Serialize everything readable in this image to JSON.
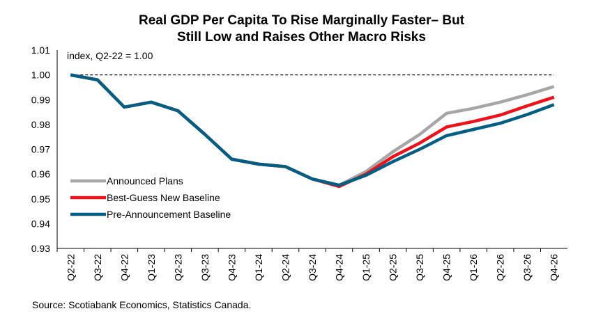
{
  "chart_data": {
    "type": "line",
    "title_lines": [
      "Real GDP Per Capita To Rise Marginally Faster– But",
      "Still Low and Raises Other Macro Risks"
    ],
    "annotation": "index, Q2-22 = 1.00",
    "source": "Source: Scotiabank Economics, Statistics Canada.",
    "categories": [
      "Q2-22",
      "Q3-22",
      "Q4-22",
      "Q1-23",
      "Q2-23",
      "Q3-23",
      "Q4-23",
      "Q1-24",
      "Q2-24",
      "Q3-24",
      "Q4-24",
      "Q1-25",
      "Q2-25",
      "Q3-25",
      "Q4-25",
      "Q1-26",
      "Q2-26",
      "Q3-26",
      "Q4-26"
    ],
    "ylim": [
      0.93,
      1.01
    ],
    "yticks": [
      "0.93",
      "0.94",
      "0.95",
      "0.96",
      "0.97",
      "0.98",
      "0.99",
      "1.00",
      "1.01"
    ],
    "reference_line": 1.0,
    "grid": false,
    "legend_placement": "lower-left",
    "series": [
      {
        "name": "Announced Plans",
        "color": "#a6a6a6",
        "values": [
          1.0,
          0.998,
          0.987,
          0.989,
          0.9855,
          0.976,
          0.966,
          0.964,
          0.963,
          0.958,
          0.9555,
          0.961,
          0.969,
          0.976,
          0.9845,
          0.9865,
          0.989,
          0.992,
          0.9953
        ]
      },
      {
        "name": "Best-Guess New Baseline",
        "color": "#ec111a",
        "values": [
          1.0,
          0.998,
          0.987,
          0.989,
          0.9855,
          0.976,
          0.966,
          0.964,
          0.963,
          0.958,
          0.955,
          0.96,
          0.967,
          0.9725,
          0.979,
          0.9812,
          0.9838,
          0.9875,
          0.991
        ]
      },
      {
        "name": "Pre-Announcement Baseline",
        "color": "#005e85",
        "values": [
          1.0,
          0.998,
          0.987,
          0.989,
          0.9855,
          0.976,
          0.966,
          0.964,
          0.963,
          0.958,
          0.9555,
          0.9595,
          0.965,
          0.97,
          0.9755,
          0.978,
          0.9805,
          0.984,
          0.988
        ]
      }
    ]
  }
}
